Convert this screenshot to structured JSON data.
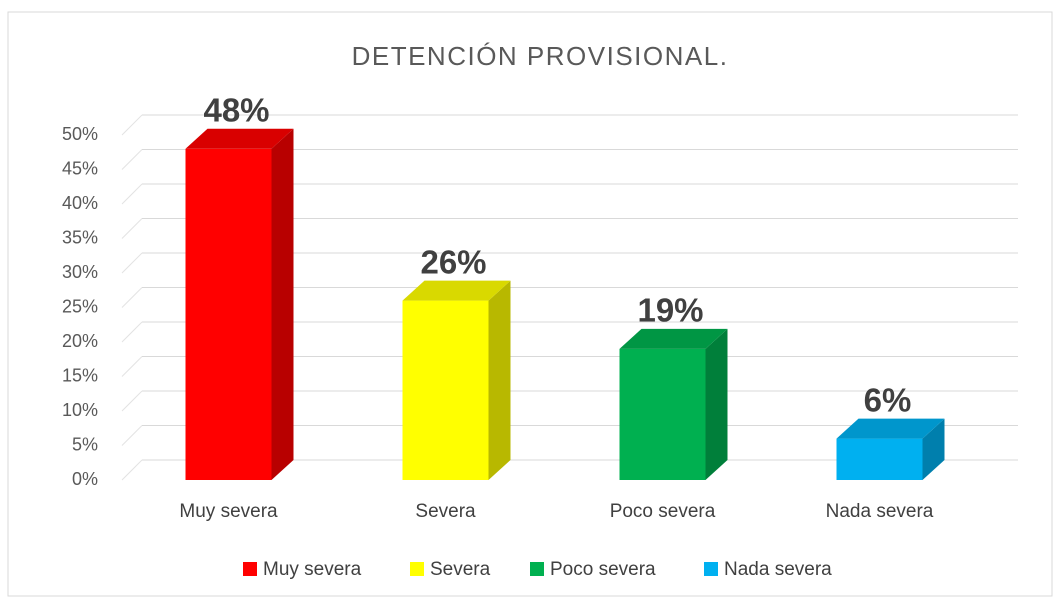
{
  "chart_data": {
    "type": "bar3d",
    "title": "DETENCIÓN PROVISIONAL.",
    "categories": [
      "Muy severa",
      "Severa",
      "Poco severa",
      "Nada severa"
    ],
    "values": [
      48,
      26,
      19,
      6
    ],
    "value_labels": [
      "48%",
      "26%",
      "19%",
      "6%"
    ],
    "colors": [
      "#ff0000",
      "#ffff00",
      "#00b050",
      "#00b0f0"
    ],
    "ylim": [
      0,
      50
    ],
    "yticks": [
      {
        "value": 0,
        "label": "0%"
      },
      {
        "value": 5,
        "label": "5%"
      },
      {
        "value": 10,
        "label": "10%"
      },
      {
        "value": 15,
        "label": "15%"
      },
      {
        "value": 20,
        "label": "20%"
      },
      {
        "value": 25,
        "label": "25%"
      },
      {
        "value": 30,
        "label": "30%"
      },
      {
        "value": 35,
        "label": "35%"
      },
      {
        "value": 40,
        "label": "40%"
      },
      {
        "value": 45,
        "label": "45%"
      },
      {
        "value": 50,
        "label": "50%"
      }
    ],
    "grid": true,
    "legend": "bottom"
  }
}
